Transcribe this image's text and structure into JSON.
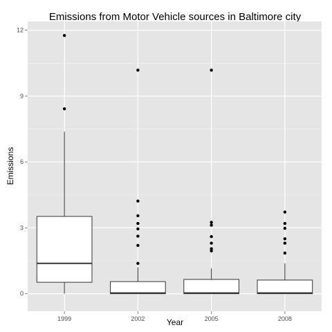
{
  "chart_data": {
    "type": "boxplot",
    "title": "Emissions from Motor Vehicle sources in Baltimore city",
    "xlabel": "Year",
    "ylabel": "Emissions",
    "ylim": [
      -0.8,
      12.4
    ],
    "yticks": [
      0,
      3,
      6,
      9,
      12
    ],
    "grid": true,
    "panel_background": "#e5e5e5",
    "grid_color": "#ffffff",
    "box_fill": "#ffffff",
    "box_stroke": "#333333",
    "point_color": "#000000",
    "categories": [
      "1999",
      "2002",
      "2005",
      "2008"
    ],
    "boxes": [
      {
        "label": "1999",
        "min": 0.0,
        "q1": 0.52,
        "median": 1.38,
        "q3": 3.52,
        "max": 7.38,
        "outliers": [
          8.42,
          11.76
        ]
      },
      {
        "label": "2002",
        "min": 0.0,
        "q1": 0.0,
        "median": 0.03,
        "q3": 0.55,
        "max": 1.2,
        "outliers": [
          1.38,
          2.2,
          2.62,
          2.95,
          3.2,
          3.55,
          4.22,
          10.18
        ]
      },
      {
        "label": "2005",
        "min": 0.0,
        "q1": 0.0,
        "median": 0.03,
        "q3": 0.65,
        "max": 1.15,
        "outliers": [
          1.95,
          2.05,
          2.3,
          2.6,
          3.12,
          3.25,
          10.18
        ]
      },
      {
        "label": "2008",
        "min": 0.0,
        "q1": 0.0,
        "median": 0.03,
        "q3": 0.62,
        "max": 1.38,
        "outliers": [
          1.85,
          2.3,
          2.5,
          2.98,
          3.2,
          3.72
        ]
      }
    ]
  }
}
